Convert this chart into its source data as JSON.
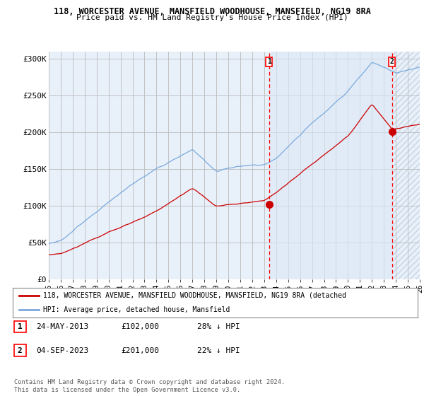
{
  "title_line1": "118, WORCESTER AVENUE, MANSFIELD WOODHOUSE, MANSFIELD, NG19 8RA",
  "title_line2": "Price paid vs. HM Land Registry's House Price Index (HPI)",
  "ylim": [
    0,
    310000
  ],
  "yticks": [
    0,
    50000,
    100000,
    150000,
    200000,
    250000,
    300000
  ],
  "ytick_labels": [
    "£0",
    "£50K",
    "£100K",
    "£150K",
    "£200K",
    "£250K",
    "£300K"
  ],
  "plot_bg_color": "#e8f0fa",
  "grid_color": "#bbbbbb",
  "hpi_color": "#7aaadd",
  "price_color": "#cc0000",
  "sale1_date_num": 2013.4,
  "sale1_price": 102000,
  "sale1_label": "1",
  "sale2_date_num": 2023.67,
  "sale2_price": 201000,
  "sale2_label": "2",
  "legend_entry1": "118, WORCESTER AVENUE, MANSFIELD WOODHOUSE, MANSFIELD, NG19 8RA (detached",
  "legend_entry2": "HPI: Average price, detached house, Mansfield",
  "annotation1_date": "24-MAY-2013",
  "annotation1_price": "£102,000",
  "annotation1_hpi": "28% ↓ HPI",
  "annotation2_date": "04-SEP-2023",
  "annotation2_price": "£201,000",
  "annotation2_hpi": "22% ↓ HPI",
  "footer": "Contains HM Land Registry data © Crown copyright and database right 2024.\nThis data is licensed under the Open Government Licence v3.0.",
  "xstart": 1995,
  "xend": 2026
}
